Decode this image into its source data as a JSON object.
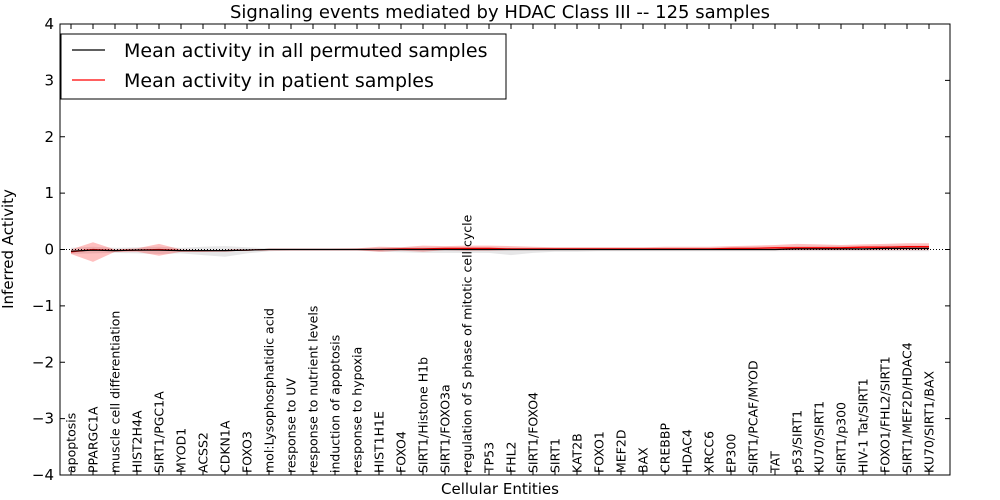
{
  "chart_data": {
    "type": "line",
    "title": "Signaling events mediated by HDAC Class III -- 125 samples",
    "xlabel": "Cellular Entities",
    "ylabel": "Inferred Activity",
    "ylim": [
      -4,
      4
    ],
    "yticks": [
      -4,
      -3,
      -2,
      -1,
      0,
      1,
      2,
      3,
      4
    ],
    "ytick_labels": [
      "−4",
      "−3",
      "−2",
      "−1",
      "0",
      "1",
      "2",
      "3",
      "4"
    ],
    "legend_position": "top-left",
    "categories": [
      "apoptosis",
      "PPARGC1A",
      "muscle cell differentiation",
      "HIST2H4A",
      "SIRT1/PGC1A",
      "MYOD1",
      "ACSS2",
      "CDKN1A",
      "FOXO3",
      "mol:Lysophosphatidic acid",
      "response to UV",
      "response to nutrient levels",
      "induction of apoptosis",
      "response to hypoxia",
      "HIST1H1E",
      "FOXO4",
      "SIRT1/Histone H1b",
      "SIRT1/FOXO3a",
      "regulation of S phase of mitotic cell cycle",
      "TP53",
      "FHL2",
      "SIRT1/FOXO4",
      "SIRT1",
      "KAT2B",
      "FOXO1",
      "MEF2D",
      "BAX",
      "CREBBP",
      "HDAC4",
      "XRCC6",
      "EP300",
      "SIRT1/PCAF/MYOD",
      "TAT",
      "p53/SIRT1",
      "KU70/SIRT1",
      "SIRT1/p300",
      "HIV-1 Tat/SIRT1",
      "FOXO1/FHL2/SIRT1",
      "SIRT1/MEF2D/HDAC4",
      "KU70/SIRT1/BAX"
    ],
    "series": [
      {
        "name": "Mean activity in all permuted samples",
        "color": "#000000",
        "values": [
          -0.03,
          -0.01,
          -0.02,
          -0.01,
          -0.01,
          -0.02,
          -0.02,
          -0.02,
          -0.01,
          0.0,
          0.0,
          0.0,
          0.0,
          0.0,
          0.0,
          0.0,
          0.0,
          0.0,
          0.0,
          0.0,
          0.0,
          0.0,
          0.0,
          0.0,
          0.0,
          0.0,
          0.0,
          0.0,
          0.0,
          0.0,
          0.0,
          0.0,
          0.0,
          0.01,
          0.01,
          0.01,
          0.01,
          0.02,
          0.02,
          0.02
        ],
        "band_upper": [
          0.03,
          0.05,
          0.03,
          0.04,
          0.05,
          0.03,
          0.05,
          0.06,
          0.04,
          0.02,
          0.02,
          0.02,
          0.02,
          0.02,
          0.03,
          0.04,
          0.04,
          0.04,
          0.04,
          0.04,
          0.03,
          0.03,
          0.03,
          0.03,
          0.03,
          0.03,
          0.03,
          0.03,
          0.03,
          0.03,
          0.04,
          0.05,
          0.05,
          0.06,
          0.06,
          0.06,
          0.06,
          0.07,
          0.07,
          0.07
        ],
        "band_lower": [
          -0.08,
          -0.07,
          -0.06,
          -0.07,
          -0.08,
          -0.07,
          -0.1,
          -0.13,
          -0.07,
          -0.03,
          -0.02,
          -0.02,
          -0.02,
          -0.02,
          -0.04,
          -0.05,
          -0.06,
          -0.06,
          -0.06,
          -0.06,
          -0.1,
          -0.06,
          -0.04,
          -0.04,
          -0.03,
          -0.03,
          -0.03,
          -0.03,
          -0.03,
          -0.03,
          -0.03,
          -0.03,
          -0.03,
          -0.03,
          -0.03,
          -0.03,
          -0.03,
          -0.03,
          -0.03,
          -0.03
        ]
      },
      {
        "name": "Mean activity in patient samples",
        "color": "#ff0000",
        "values": [
          -0.04,
          0.0,
          -0.02,
          -0.01,
          0.0,
          -0.02,
          -0.02,
          -0.02,
          -0.01,
          0.0,
          0.0,
          0.0,
          0.0,
          0.0,
          0.0,
          0.01,
          0.01,
          0.02,
          0.02,
          0.02,
          0.01,
          0.01,
          0.01,
          0.01,
          0.01,
          0.01,
          0.01,
          0.01,
          0.01,
          0.01,
          0.02,
          0.02,
          0.03,
          0.03,
          0.03,
          0.03,
          0.04,
          0.04,
          0.05,
          0.05
        ],
        "band_upper": [
          0.0,
          0.13,
          0.0,
          0.02,
          0.1,
          0.0,
          -0.01,
          -0.01,
          0.0,
          0.0,
          0.0,
          0.0,
          0.01,
          0.02,
          0.05,
          0.04,
          0.07,
          0.06,
          0.07,
          0.07,
          0.06,
          0.05,
          0.04,
          0.04,
          0.04,
          0.04,
          0.04,
          0.05,
          0.05,
          0.05,
          0.06,
          0.07,
          0.08,
          0.1,
          0.09,
          0.08,
          0.09,
          0.1,
          0.11,
          0.11
        ],
        "band_lower": [
          -0.08,
          -0.22,
          -0.04,
          -0.04,
          -0.11,
          -0.04,
          -0.04,
          -0.03,
          -0.02,
          -0.01,
          -0.01,
          -0.01,
          -0.01,
          -0.01,
          -0.04,
          -0.02,
          -0.04,
          -0.01,
          -0.02,
          -0.02,
          -0.01,
          -0.01,
          -0.01,
          -0.01,
          -0.01,
          -0.01,
          -0.01,
          -0.01,
          -0.01,
          -0.01,
          -0.01,
          -0.01,
          -0.01,
          -0.01,
          -0.01,
          -0.01,
          -0.01,
          -0.01,
          -0.01,
          -0.01
        ]
      }
    ]
  }
}
